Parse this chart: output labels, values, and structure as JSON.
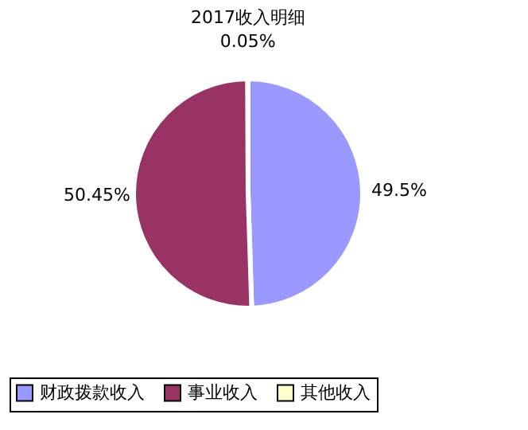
{
  "chart_data": {
    "type": "pie",
    "title": "2017收入明细",
    "categories": [
      "财政拨款收入",
      "事业收入",
      "其他收入"
    ],
    "values": [
      49.5,
      50.45,
      0.05
    ],
    "colors": [
      "#9999ff",
      "#993366",
      "#ffffcc"
    ],
    "value_labels": [
      "49.5%",
      "50.45%",
      "0.05%"
    ],
    "legend": "bottom"
  }
}
